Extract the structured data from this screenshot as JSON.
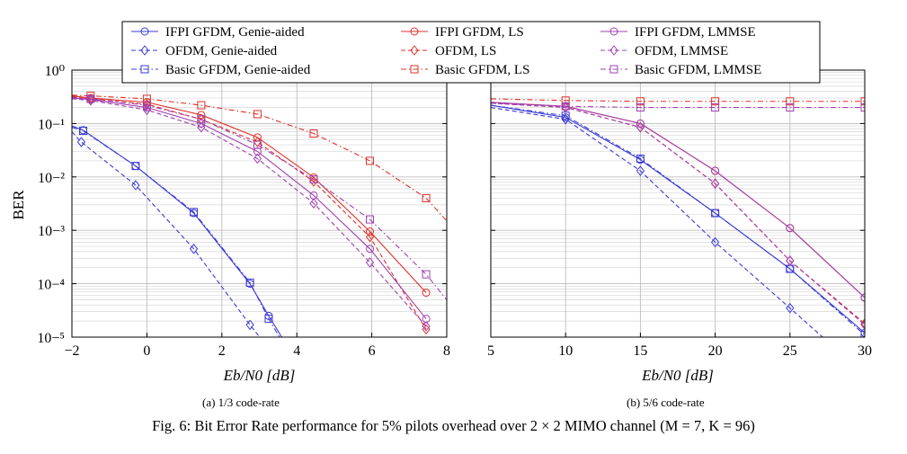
{
  "figure": {
    "caption": "Fig. 6: Bit Error Rate performance for 5% pilots overhead over 2 × 2 MIMO channel (M = 7, K = 96)",
    "y_axis_label": "BER"
  },
  "legend": [
    {
      "label": "IFPI GFDM, Genie-aided",
      "color": "#3b3bd6",
      "dash": "solid",
      "marker": "circle"
    },
    {
      "label": "OFDM, Genie-aided",
      "color": "#3b3bd6",
      "dash": "dashed",
      "marker": "diamond"
    },
    {
      "label": "Basic GFDM, Genie-aided",
      "color": "#3b3bd6",
      "dash": "dashdot",
      "marker": "square"
    },
    {
      "label": "IFPI GFDM, LS",
      "color": "#e0302a",
      "dash": "solid",
      "marker": "circle"
    },
    {
      "label": "OFDM, LS",
      "color": "#e0302a",
      "dash": "dashed",
      "marker": "diamond"
    },
    {
      "label": "Basic GFDM, LS",
      "color": "#e0302a",
      "dash": "dashdot",
      "marker": "square"
    },
    {
      "label": "IFPI GFDM, LMMSE",
      "color": "#a040b0",
      "dash": "solid",
      "marker": "circle"
    },
    {
      "label": "OFDM, LMMSE",
      "color": "#a040b0",
      "dash": "dashed",
      "marker": "diamond"
    },
    {
      "label": "Basic GFDM, LMMSE",
      "color": "#a040b0",
      "dash": "dashdot",
      "marker": "square"
    }
  ],
  "chart_data": [
    {
      "type": "line",
      "subcaption": "(a) 1/3 code-rate",
      "xlabel": "Eb/N0 [dB]",
      "ylabel": "BER",
      "yscale": "log",
      "xlim": [
        -2,
        8
      ],
      "ylim": [
        1e-05,
        1
      ],
      "xticks": [
        -2,
        0,
        2,
        4,
        6,
        8
      ],
      "grid": true,
      "series": [
        {
          "name": "IFPI GFDM, Genie-aided",
          "x": [
            -2.0,
            -1.7,
            -0.3,
            1.25,
            2.75,
            3.25,
            3.6
          ],
          "y": [
            0.09,
            0.075,
            0.016,
            0.0021,
            0.0001,
            2.5e-05,
            1e-05
          ],
          "marker_x": [
            -1.7,
            -0.3,
            1.25,
            2.75,
            3.25
          ]
        },
        {
          "name": "OFDM, Genie-aided",
          "x": [
            -2.0,
            -1.75,
            -0.3,
            1.25,
            2.75,
            3.6
          ],
          "y": [
            0.07,
            0.045,
            0.007,
            0.00045,
            1.7e-05,
            3e-06
          ],
          "marker_x": [
            -1.75,
            -0.3,
            1.25,
            2.75
          ]
        },
        {
          "name": "Basic GFDM, Genie-aided",
          "x": [
            -2.0,
            -1.7,
            -0.3,
            1.25,
            2.75,
            3.25,
            3.6
          ],
          "y": [
            0.085,
            0.073,
            0.016,
            0.0022,
            0.000105,
            2.2e-05,
            8.5e-06
          ],
          "marker_x": [
            -1.7,
            -0.3,
            1.25,
            2.75,
            3.25
          ]
        },
        {
          "name": "IFPI GFDM, LS",
          "x": [
            -2.0,
            -1.5,
            0.0,
            1.45,
            2.95,
            4.45,
            5.95,
            7.45
          ],
          "y": [
            0.33,
            0.3,
            0.25,
            0.145,
            0.055,
            0.0098,
            0.00095,
            6.8e-05
          ],
          "marker_x": [
            -1.5,
            0.0,
            1.45,
            2.95,
            4.45,
            5.95,
            7.45
          ]
        },
        {
          "name": "OFDM, LS",
          "x": [
            -2.0,
            -1.5,
            0.0,
            1.45,
            2.95,
            4.45,
            5.95,
            7.45
          ],
          "y": [
            0.32,
            0.29,
            0.23,
            0.12,
            0.045,
            0.0082,
            0.00075,
            1.4e-05
          ],
          "marker_x": [
            -1.5,
            0.0,
            1.45,
            2.95,
            4.45,
            5.95,
            7.45
          ]
        },
        {
          "name": "Basic GFDM, LS",
          "x": [
            -2.0,
            -1.5,
            0.0,
            1.45,
            2.95,
            4.45,
            5.95,
            7.45,
            8.0
          ],
          "y": [
            0.34,
            0.33,
            0.29,
            0.22,
            0.15,
            0.065,
            0.02,
            0.004,
            0.0015
          ],
          "marker_x": [
            -1.5,
            0.0,
            1.45,
            2.95,
            4.45,
            5.95,
            7.45
          ]
        },
        {
          "name": "IFPI GFDM, LMMSE",
          "x": [
            -2.0,
            -1.5,
            0.0,
            1.45,
            2.95,
            4.45,
            5.95,
            7.45
          ],
          "y": [
            0.3,
            0.28,
            0.2,
            0.1,
            0.03,
            0.0045,
            0.00045,
            2.2e-05
          ],
          "marker_x": [
            -1.5,
            0.0,
            1.45,
            2.95,
            4.45,
            5.95,
            7.45
          ]
        },
        {
          "name": "OFDM, LMMSE",
          "x": [
            -2.0,
            -1.5,
            0.0,
            1.45,
            2.95,
            4.45,
            5.95,
            7.45
          ],
          "y": [
            0.29,
            0.27,
            0.18,
            0.085,
            0.022,
            0.0032,
            0.00025,
            1.6e-05
          ],
          "marker_x": [
            -1.5,
            0.0,
            1.45,
            2.95,
            4.45,
            5.95,
            7.45
          ]
        },
        {
          "name": "Basic GFDM, LMMSE",
          "x": [
            -2.0,
            -1.5,
            0.0,
            1.45,
            2.95,
            4.45,
            5.95,
            7.45,
            8.0
          ],
          "y": [
            0.31,
            0.29,
            0.22,
            0.12,
            0.04,
            0.009,
            0.0016,
            0.00015,
            5e-05
          ],
          "marker_x": [
            -1.5,
            0.0,
            1.45,
            2.95,
            4.45,
            5.95,
            7.45
          ]
        }
      ]
    },
    {
      "type": "line",
      "subcaption": "(b) 5/6 code-rate",
      "xlabel": "Eb/N0 [dB]",
      "ylabel": "",
      "yscale": "log",
      "xlim": [
        5,
        30
      ],
      "ylim": [
        1e-05,
        1
      ],
      "xticks": [
        5,
        10,
        15,
        20,
        25,
        30
      ],
      "grid": true,
      "series": [
        {
          "name": "IFPI GFDM, Genie-aided",
          "x": [
            5,
            10,
            15,
            20,
            25,
            30
          ],
          "y": [
            0.22,
            0.13,
            0.021,
            0.0021,
            0.00019,
            1.2e-05
          ],
          "marker_x": [
            10,
            15,
            20,
            25,
            30
          ]
        },
        {
          "name": "OFDM, Genie-aided",
          "x": [
            5,
            10,
            15,
            20,
            25,
            30
          ],
          "y": [
            0.2,
            0.12,
            0.013,
            0.0006,
            3.5e-05,
            2e-06
          ],
          "marker_x": [
            10,
            15,
            20,
            25
          ]
        },
        {
          "name": "Basic GFDM, Genie-aided",
          "x": [
            5,
            10,
            15,
            20,
            25,
            30
          ],
          "y": [
            0.22,
            0.14,
            0.022,
            0.0021,
            0.00019,
            1.1e-05
          ],
          "marker_x": [
            10,
            15,
            20,
            25,
            30
          ]
        },
        {
          "name": "IFPI GFDM, LS",
          "x": [
            5,
            10,
            15,
            20,
            25,
            30
          ],
          "y": [
            0.25,
            0.21,
            0.1,
            0.013,
            0.0011,
            5.5e-05
          ],
          "marker_x": [
            10,
            15,
            20,
            25,
            30
          ]
        },
        {
          "name": "OFDM, LS",
          "x": [
            5,
            10,
            15,
            20,
            25,
            30
          ],
          "y": [
            0.24,
            0.2,
            0.085,
            0.0075,
            0.00027,
            1.8e-05
          ],
          "marker_x": [
            10,
            15,
            20,
            25,
            30
          ]
        },
        {
          "name": "Basic GFDM, LS",
          "x": [
            5,
            10,
            15,
            20,
            25,
            30
          ],
          "y": [
            0.29,
            0.27,
            0.26,
            0.26,
            0.26,
            0.26
          ],
          "marker_x": [
            10,
            15,
            20,
            25,
            30
          ]
        },
        {
          "name": "IFPI GFDM, LMMSE",
          "x": [
            5,
            10,
            15,
            20,
            25,
            30
          ],
          "y": [
            0.25,
            0.21,
            0.1,
            0.013,
            0.0011,
            5.5e-05
          ],
          "marker_x": [
            10,
            15,
            20,
            25,
            30
          ]
        },
        {
          "name": "OFDM, LMMSE",
          "x": [
            5,
            10,
            15,
            20,
            25,
            30
          ],
          "y": [
            0.24,
            0.2,
            0.085,
            0.0075,
            0.00027,
            1.7e-05
          ],
          "marker_x": [
            10,
            15,
            20,
            25,
            30
          ]
        },
        {
          "name": "Basic GFDM, LMMSE",
          "x": [
            5,
            10,
            15,
            20,
            25,
            30
          ],
          "y": [
            0.24,
            0.21,
            0.2,
            0.2,
            0.2,
            0.2
          ],
          "marker_x": [
            10,
            15,
            20,
            25,
            30
          ]
        }
      ]
    }
  ]
}
